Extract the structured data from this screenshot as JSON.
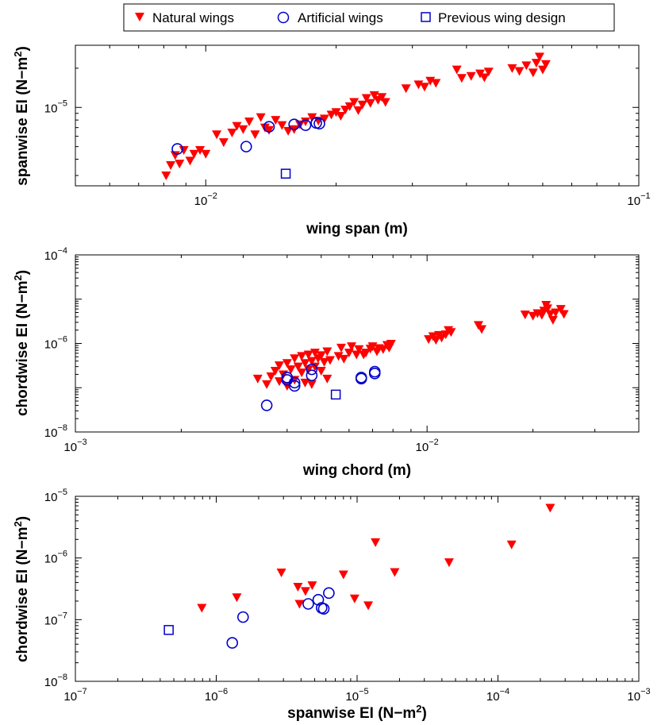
{
  "legend": {
    "placement": "top-center",
    "entries": [
      {
        "label": "Natural wings",
        "marker": "triangle-down-filled",
        "color": "#ff0000"
      },
      {
        "label": "Artificial wings",
        "marker": "circle-open",
        "color": "#0000cc"
      },
      {
        "label": "Previous wing design",
        "marker": "square-open",
        "color": "#0000cc"
      }
    ]
  },
  "chart_data": [
    {
      "type": "scatter",
      "xlabel": "wing span (m)",
      "ylabel": "spanwise EI (N−m",
      "ylabel_sup": "2",
      "ylabel_close": ")",
      "xscale": "log",
      "yscale": "log",
      "xlim": [
        0.005,
        0.1
      ],
      "ylim": [
        2.5e-06,
        3e-05
      ],
      "x_ticks": [
        {
          "base": "10",
          "exp": "−2",
          "value": 0.01
        },
        {
          "base": "10",
          "exp": "−1",
          "value": 0.1
        }
      ],
      "y_ticks": [
        {
          "base": "10",
          "exp": "−5",
          "value": 1e-05
        }
      ],
      "grid": false,
      "series": [
        {
          "name": "Natural wings",
          "marker": "triangle-down-filled",
          "color": "#ff0000",
          "points": [
            [
              0.0081,
              3e-06
            ],
            [
              0.0083,
              3.6e-06
            ],
            [
              0.0085,
              4.3e-06
            ],
            [
              0.0087,
              3.7e-06
            ],
            [
              0.0089,
              4.7e-06
            ],
            [
              0.0092,
              3.9e-06
            ],
            [
              0.0094,
              4.4e-06
            ],
            [
              0.0097,
              4.7e-06
            ],
            [
              0.01,
              4.4e-06
            ],
            [
              0.0106,
              6.2e-06
            ],
            [
              0.011,
              5.4e-06
            ],
            [
              0.0115,
              6.4e-06
            ],
            [
              0.0118,
              7.2e-06
            ],
            [
              0.0122,
              6.8e-06
            ],
            [
              0.0126,
              7.8e-06
            ],
            [
              0.013,
              6.2e-06
            ],
            [
              0.0134,
              8.4e-06
            ],
            [
              0.0137,
              7e-06
            ],
            [
              0.014,
              6.7e-06
            ],
            [
              0.0145,
              8e-06
            ],
            [
              0.015,
              7.3e-06
            ],
            [
              0.0155,
              6.6e-06
            ],
            [
              0.016,
              6.8e-06
            ],
            [
              0.0165,
              7.4e-06
            ],
            [
              0.017,
              7.8e-06
            ],
            [
              0.0176,
              8.4e-06
            ],
            [
              0.0182,
              7.9e-06
            ],
            [
              0.0188,
              8.2e-06
            ],
            [
              0.0195,
              8.8e-06
            ],
            [
              0.02,
              9.2e-06
            ],
            [
              0.0205,
              8.6e-06
            ],
            [
              0.021,
              9.6e-06
            ],
            [
              0.0215,
              1.02e-05
            ],
            [
              0.022,
              1.1e-05
            ],
            [
              0.0225,
              9.5e-06
            ],
            [
              0.023,
              1.05e-05
            ],
            [
              0.0235,
              1.18e-05
            ],
            [
              0.024,
              1.08e-05
            ],
            [
              0.0245,
              1.24e-05
            ],
            [
              0.025,
              1.14e-05
            ],
            [
              0.0255,
              1.2e-05
            ],
            [
              0.026,
              1.1e-05
            ],
            [
              0.029,
              1.4e-05
            ],
            [
              0.031,
              1.5e-05
            ],
            [
              0.032,
              1.44e-05
            ],
            [
              0.033,
              1.6e-05
            ],
            [
              0.034,
              1.54e-05
            ],
            [
              0.038,
              1.95e-05
            ],
            [
              0.039,
              1.68e-05
            ],
            [
              0.041,
              1.74e-05
            ],
            [
              0.043,
              1.82e-05
            ],
            [
              0.044,
              1.7e-05
            ],
            [
              0.045,
              1.88e-05
            ],
            [
              0.051,
              2e-05
            ],
            [
              0.053,
              1.9e-05
            ],
            [
              0.055,
              2.1e-05
            ],
            [
              0.057,
              1.85e-05
            ],
            [
              0.058,
              2.2e-05
            ],
            [
              0.059,
              2.45e-05
            ],
            [
              0.06,
              1.95e-05
            ],
            [
              0.061,
              2.15e-05
            ]
          ]
        },
        {
          "name": "Artificial wings",
          "marker": "circle-open",
          "color": "#0000cc",
          "points": [
            [
              0.0086,
              4.8e-06
            ],
            [
              0.0124,
              5e-06
            ],
            [
              0.014,
              7.1e-06
            ],
            [
              0.016,
              7.4e-06
            ],
            [
              0.017,
              7.3e-06
            ],
            [
              0.018,
              7.6e-06
            ],
            [
              0.0183,
              7.5e-06
            ]
          ]
        },
        {
          "name": "Previous wing design",
          "marker": "square-open",
          "color": "#0000cc",
          "points": [
            [
              0.0153,
              3.1e-06
            ]
          ]
        }
      ]
    },
    {
      "type": "scatter",
      "xlabel": "wing chord (m)",
      "ylabel": "chordwise EI (N−m",
      "ylabel_sup": "2",
      "ylabel_close": ")",
      "xscale": "log",
      "yscale": "log",
      "xlim": [
        0.001,
        0.04
      ],
      "ylim": [
        1e-08,
        0.0001
      ],
      "x_ticks": [
        {
          "base": "10",
          "exp": "−3",
          "value": 0.001
        },
        {
          "base": "10",
          "exp": "−2",
          "value": 0.01
        }
      ],
      "y_ticks": [
        {
          "base": "10",
          "exp": "−8",
          "value": 1e-08
        },
        {
          "base": "10",
          "exp": "−6",
          "value": 1e-06
        },
        {
          "base": "10",
          "exp": "−4",
          "value": 0.0001
        }
      ],
      "grid": false,
      "series": [
        {
          "name": "Natural wings",
          "marker": "triangle-down-filled",
          "color": "#ff0000",
          "points": [
            [
              0.0033,
              1.6e-07
            ],
            [
              0.0035,
              1.2e-07
            ],
            [
              0.0036,
              1.8e-07
            ],
            [
              0.0037,
              2.4e-07
            ],
            [
              0.0038,
              1.4e-07
            ],
            [
              0.0038,
              3.2e-07
            ],
            [
              0.0039,
              2e-07
            ],
            [
              0.004,
              1.1e-07
            ],
            [
              0.004,
              3.6e-07
            ],
            [
              0.0041,
              2.6e-07
            ],
            [
              0.0042,
              1.5e-07
            ],
            [
              0.0042,
              4.6e-07
            ],
            [
              0.0043,
              3e-07
            ],
            [
              0.0044,
              2.2e-07
            ],
            [
              0.0044,
              5.2e-07
            ],
            [
              0.0045,
              3.6e-07
            ],
            [
              0.0045,
              1.3e-07
            ],
            [
              0.0046,
              2.6e-07
            ],
            [
              0.0046,
              5.6e-07
            ],
            [
              0.0047,
              4e-07
            ],
            [
              0.0047,
              1.2e-07
            ],
            [
              0.0048,
              3e-07
            ],
            [
              0.0048,
              6.2e-07
            ],
            [
              0.0049,
              4.6e-07
            ],
            [
              0.005,
              2.4e-07
            ],
            [
              0.005,
              5.4e-07
            ],
            [
              0.0051,
              3.8e-07
            ],
            [
              0.0052,
              6.6e-07
            ],
            [
              0.0052,
              1.6e-07
            ],
            [
              0.0053,
              4.2e-07
            ],
            [
              0.0056,
              5.2e-07
            ],
            [
              0.0057,
              8e-07
            ],
            [
              0.0058,
              4.5e-07
            ],
            [
              0.006,
              6.2e-07
            ],
            [
              0.0061,
              8.6e-07
            ],
            [
              0.0063,
              5.6e-07
            ],
            [
              0.0064,
              7.4e-07
            ],
            [
              0.0066,
              5.6e-07
            ],
            [
              0.0067,
              6.2e-07
            ],
            [
              0.0069,
              7.6e-07
            ],
            [
              0.007,
              8.6e-07
            ],
            [
              0.0072,
              6.6e-07
            ],
            [
              0.0073,
              7.8e-07
            ],
            [
              0.0075,
              7.4e-07
            ],
            [
              0.0077,
              9.2e-07
            ],
            [
              0.0078,
              8e-07
            ],
            [
              0.0079,
              9.8e-07
            ],
            [
              0.0101,
              1.25e-06
            ],
            [
              0.0104,
              1.45e-06
            ],
            [
              0.0106,
              1.2e-06
            ],
            [
              0.0108,
              1.55e-06
            ],
            [
              0.011,
              1.35e-06
            ],
            [
              0.0113,
              1.6e-06
            ],
            [
              0.0115,
              2e-06
            ],
            [
              0.0117,
              1.8e-06
            ],
            [
              0.014,
              2.6e-06
            ],
            [
              0.0143,
              2.1e-06
            ],
            [
              0.019,
              4.5e-06
            ],
            [
              0.02,
              4.2e-06
            ],
            [
              0.0206,
              4.8e-06
            ],
            [
              0.0212,
              4.4e-06
            ],
            [
              0.0215,
              5.5e-06
            ],
            [
              0.0218,
              7.4e-06
            ],
            [
              0.022,
              6.2e-06
            ],
            [
              0.0224,
              4.6e-06
            ],
            [
              0.0228,
              3.4e-06
            ],
            [
              0.0232,
              5e-06
            ],
            [
              0.024,
              6e-06
            ],
            [
              0.0245,
              4.6e-06
            ]
          ]
        },
        {
          "name": "Artificial wings",
          "marker": "circle-open",
          "color": "#0000cc",
          "points": [
            [
              0.0035,
              4e-08
            ],
            [
              0.004,
              1.7e-07
            ],
            [
              0.004,
              1.5e-07
            ],
            [
              0.0042,
              1.1e-07
            ],
            [
              0.0042,
              1.3e-07
            ],
            [
              0.0047,
              1.9e-07
            ],
            [
              0.0047,
              2.6e-07
            ],
            [
              0.0065,
              1.7e-07
            ],
            [
              0.0065,
              1.6e-07
            ],
            [
              0.0071,
              2.1e-07
            ],
            [
              0.0071,
              2.3e-07
            ]
          ]
        },
        {
          "name": "Previous wing design",
          "marker": "square-open",
          "color": "#0000cc",
          "points": [
            [
              0.0055,
              7e-08
            ]
          ]
        }
      ]
    },
    {
      "type": "scatter",
      "xlabel": "spanwise EI (N−m",
      "xlabel_sup": "2",
      "xlabel_close": ")",
      "ylabel": "chordwise EI (N−m",
      "ylabel_sup": "2",
      "ylabel_close": ")",
      "xscale": "log",
      "yscale": "log",
      "xlim": [
        1e-07,
        0.001
      ],
      "ylim": [
        1e-08,
        1e-05
      ],
      "x_ticks": [
        {
          "base": "10",
          "exp": "−7",
          "value": 1e-07
        },
        {
          "base": "10",
          "exp": "−6",
          "value": 1e-06
        },
        {
          "base": "10",
          "exp": "−5",
          "value": 1e-05
        },
        {
          "base": "10",
          "exp": "−4",
          "value": 0.0001
        },
        {
          "base": "10",
          "exp": "−3",
          "value": 0.001
        }
      ],
      "y_ticks": [
        {
          "base": "10",
          "exp": "−8",
          "value": 1e-08
        },
        {
          "base": "10",
          "exp": "−7",
          "value": 1e-07
        },
        {
          "base": "10",
          "exp": "−6",
          "value": 1e-06
        },
        {
          "base": "10",
          "exp": "−5",
          "value": 1e-05
        }
      ],
      "grid": false,
      "series": [
        {
          "name": "Natural wings",
          "marker": "triangle-down-filled",
          "color": "#ff0000",
          "points": [
            [
              7.9e-07,
              1.55e-07
            ],
            [
              1.4e-06,
              2.3e-07
            ],
            [
              2.9e-06,
              5.8e-07
            ],
            [
              3.8e-06,
              3.4e-07
            ],
            [
              3.9e-06,
              1.8e-07
            ],
            [
              4.3e-06,
              2.9e-07
            ],
            [
              4.8e-06,
              3.6e-07
            ],
            [
              8e-06,
              5.4e-07
            ],
            [
              9.6e-06,
              2.2e-07
            ],
            [
              1.2e-05,
              1.7e-07
            ],
            [
              1.35e-05,
              1.8e-06
            ],
            [
              1.85e-05,
              5.9e-07
            ],
            [
              4.5e-05,
              8.5e-07
            ],
            [
              0.000125,
              1.65e-06
            ],
            [
              0.000235,
              6.5e-06
            ]
          ]
        },
        {
          "name": "Artificial wings",
          "marker": "circle-open",
          "color": "#0000cc",
          "points": [
            [
              1.3e-06,
              4.2e-08
            ],
            [
              1.55e-06,
              1.1e-07
            ],
            [
              4.5e-06,
              1.8e-07
            ],
            [
              5.3e-06,
              2.1e-07
            ],
            [
              5.6e-06,
              1.55e-07
            ],
            [
              5.8e-06,
              1.5e-07
            ],
            [
              6.3e-06,
              2.7e-07
            ]
          ]
        },
        {
          "name": "Previous wing design",
          "marker": "square-open",
          "color": "#0000cc",
          "points": [
            [
              4.6e-07,
              6.8e-08
            ]
          ]
        }
      ]
    }
  ]
}
